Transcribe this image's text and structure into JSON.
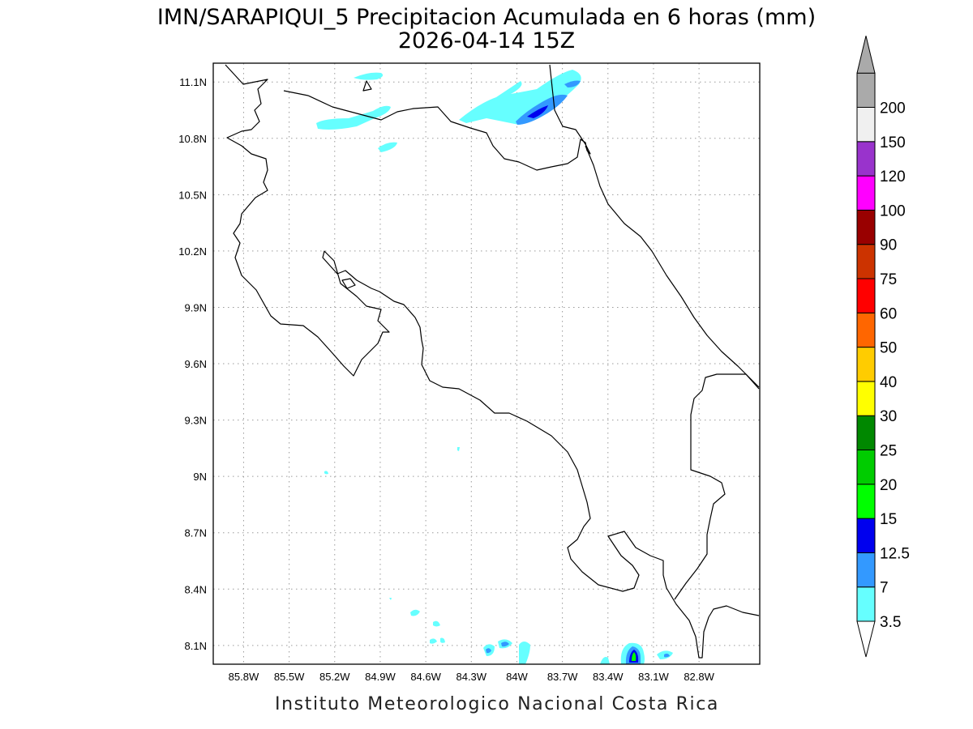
{
  "title": {
    "line1": "IMN/SARAPIQUI_5 Precipitacion Acumulada en 6 horas (mm)",
    "line2": "2026-04-14 15Z"
  },
  "footer": "Instituto Meteorologico Nacional Costa Rica",
  "map": {
    "lon_range": [
      -86.0,
      -82.4
    ],
    "lat_range": [
      8.0,
      11.2
    ],
    "lon_ticks": [
      -85.8,
      -85.5,
      -85.2,
      -84.9,
      -84.6,
      -84.3,
      -84.0,
      -83.7,
      -83.4,
      -83.1,
      -82.8
    ],
    "lon_tick_labels": [
      "85.8W",
      "85.5W",
      "85.2W",
      "84.9W",
      "84.6W",
      "84.3W",
      "84W",
      "83.7W",
      "83.4W",
      "83.1W",
      "82.8W"
    ],
    "lat_ticks": [
      11.1,
      10.8,
      10.5,
      10.2,
      9.9,
      9.6,
      9.3,
      9.0,
      8.7,
      8.4,
      8.1
    ],
    "lat_tick_labels": [
      "11.1N",
      "10.8N",
      "10.5N",
      "10.2N",
      "9.9N",
      "9.6N",
      "9.3N",
      "9N",
      "8.7N",
      "8.4N",
      "8.1N"
    ],
    "grid": "dotted"
  },
  "legend": {
    "units": "mm",
    "labels": [
      "3.5",
      "7",
      "12.5",
      "15",
      "20",
      "25",
      "30",
      "40",
      "50",
      "60",
      "75",
      "90",
      "100",
      "120",
      "150",
      "200"
    ],
    "colors": [
      "#66ffff",
      "#3399ff",
      "#0000ee",
      "#00ff00",
      "#00cc00",
      "#008800",
      "#ffff00",
      "#ffcc00",
      "#ff6600",
      "#ff0000",
      "#cc3300",
      "#990000",
      "#ff00ff",
      "#9933cc",
      "#f0f0f0",
      "#aaaaaa"
    ]
  }
}
